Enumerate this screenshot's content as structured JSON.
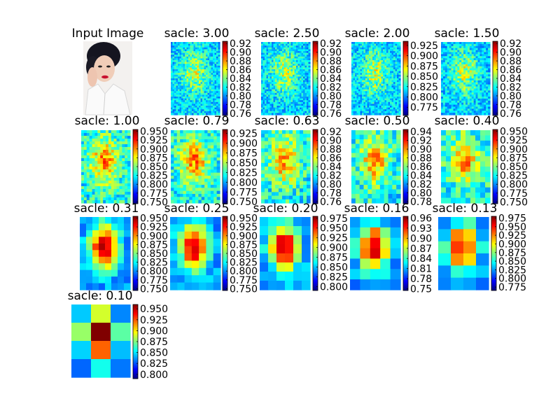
{
  "figure": {
    "input_title": "Input Image",
    "title_prefix": "sacle: "
  },
  "chart_data": [
    {
      "type": "heatmap",
      "title": "sacle: 3.00",
      "colormap": "jet",
      "colorbar_ticks": [
        "0.92",
        "0.90",
        "0.88",
        "0.86",
        "0.84",
        "0.82",
        "0.80",
        "0.78",
        "0.76"
      ],
      "vmin": 0.755,
      "vmax": 0.925,
      "grid": false
    },
    {
      "type": "heatmap",
      "title": "sacle: 2.50",
      "colormap": "jet",
      "colorbar_ticks": [
        "0.92",
        "0.90",
        "0.88",
        "0.86",
        "0.84",
        "0.82",
        "0.80",
        "0.78",
        "0.76"
      ],
      "vmin": 0.755,
      "vmax": 0.925,
      "grid": false
    },
    {
      "type": "heatmap",
      "title": "sacle: 2.00",
      "colormap": "jet",
      "colorbar_ticks": [
        "0.925",
        "0.900",
        "0.875",
        "0.850",
        "0.825",
        "0.800",
        "0.775"
      ],
      "vmin": 0.755,
      "vmax": 0.935,
      "grid": false
    },
    {
      "type": "heatmap",
      "title": "sacle: 1.50",
      "colormap": "jet",
      "colorbar_ticks": [
        "0.92",
        "0.90",
        "0.88",
        "0.86",
        "0.84",
        "0.82",
        "0.80",
        "0.78",
        "0.76"
      ],
      "vmin": 0.755,
      "vmax": 0.925,
      "grid": false
    },
    {
      "type": "heatmap",
      "title": "sacle: 1.00",
      "colormap": "jet",
      "colorbar_ticks": [
        "0.950",
        "0.925",
        "0.900",
        "0.875",
        "0.850",
        "0.825",
        "0.800",
        "0.775",
        "0.750"
      ],
      "vmin": 0.745,
      "vmax": 0.955,
      "grid": false
    },
    {
      "type": "heatmap",
      "title": "sacle: 0.79",
      "colormap": "jet",
      "colorbar_ticks": [
        "0.925",
        "0.900",
        "0.875",
        "0.850",
        "0.825",
        "0.800",
        "0.775",
        "0.750"
      ],
      "vmin": 0.745,
      "vmax": 0.935,
      "grid": false
    },
    {
      "type": "heatmap",
      "title": "sacle: 0.63",
      "colormap": "jet",
      "colorbar_ticks": [
        "0.92",
        "0.90",
        "0.88",
        "0.86",
        "0.84",
        "0.82",
        "0.80",
        "0.78",
        "0.76"
      ],
      "vmin": 0.755,
      "vmax": 0.925,
      "grid": false
    },
    {
      "type": "heatmap",
      "title": "sacle: 0.50",
      "colormap": "jet",
      "colorbar_ticks": [
        "0.94",
        "0.92",
        "0.90",
        "0.88",
        "0.86",
        "0.84",
        "0.82",
        "0.80",
        "0.78"
      ],
      "vmin": 0.775,
      "vmax": 0.945,
      "grid": false
    },
    {
      "type": "heatmap",
      "title": "sacle: 0.40",
      "colormap": "jet",
      "colorbar_ticks": [
        "0.950",
        "0.925",
        "0.900",
        "0.875",
        "0.850",
        "0.825",
        "0.800",
        "0.775",
        "0.750"
      ],
      "vmin": 0.745,
      "vmax": 0.955,
      "grid": false
    },
    {
      "type": "heatmap",
      "title": "sacle: 0.31",
      "colormap": "jet",
      "colorbar_ticks": [
        "0.950",
        "0.925",
        "0.900",
        "0.875",
        "0.850",
        "0.825",
        "0.800",
        "0.775",
        "0.750"
      ],
      "vmin": 0.745,
      "vmax": 0.955,
      "grid": false
    },
    {
      "type": "heatmap",
      "title": "sacle: 0.25",
      "colormap": "jet",
      "colorbar_ticks": [
        "0.950",
        "0.925",
        "0.900",
        "0.875",
        "0.850",
        "0.825",
        "0.800",
        "0.775",
        "0.750"
      ],
      "vmin": 0.745,
      "vmax": 0.955,
      "grid": false
    },
    {
      "type": "heatmap",
      "title": "sacle: 0.20",
      "colormap": "jet",
      "colorbar_ticks": [
        "0.975",
        "0.950",
        "0.925",
        "0.900",
        "0.875",
        "0.850",
        "0.825",
        "0.800"
      ],
      "vmin": 0.79,
      "vmax": 0.98,
      "grid": false
    },
    {
      "type": "heatmap",
      "title": "sacle: 0.16",
      "colormap": "jet",
      "colorbar_ticks": [
        "0.96",
        "0.93",
        "0.90",
        "0.87",
        "0.84",
        "0.81",
        "0.78",
        "0.75"
      ],
      "vmin": 0.745,
      "vmax": 0.965,
      "grid": false
    },
    {
      "type": "heatmap",
      "title": "sacle: 0.13",
      "colormap": "jet",
      "colorbar_ticks": [
        "0.975",
        "0.950",
        "0.925",
        "0.900",
        "0.875",
        "0.850",
        "0.825",
        "0.800",
        "0.775"
      ],
      "vmin": 0.765,
      "vmax": 0.98,
      "grid": false
    },
    {
      "type": "heatmap",
      "title": "sacle: 0.10",
      "colormap": "jet",
      "colorbar_ticks": [
        "0.950",
        "0.925",
        "0.900",
        "0.875",
        "0.850",
        "0.825",
        "0.800"
      ],
      "vmin": 0.79,
      "vmax": 0.96,
      "grid": false
    }
  ]
}
